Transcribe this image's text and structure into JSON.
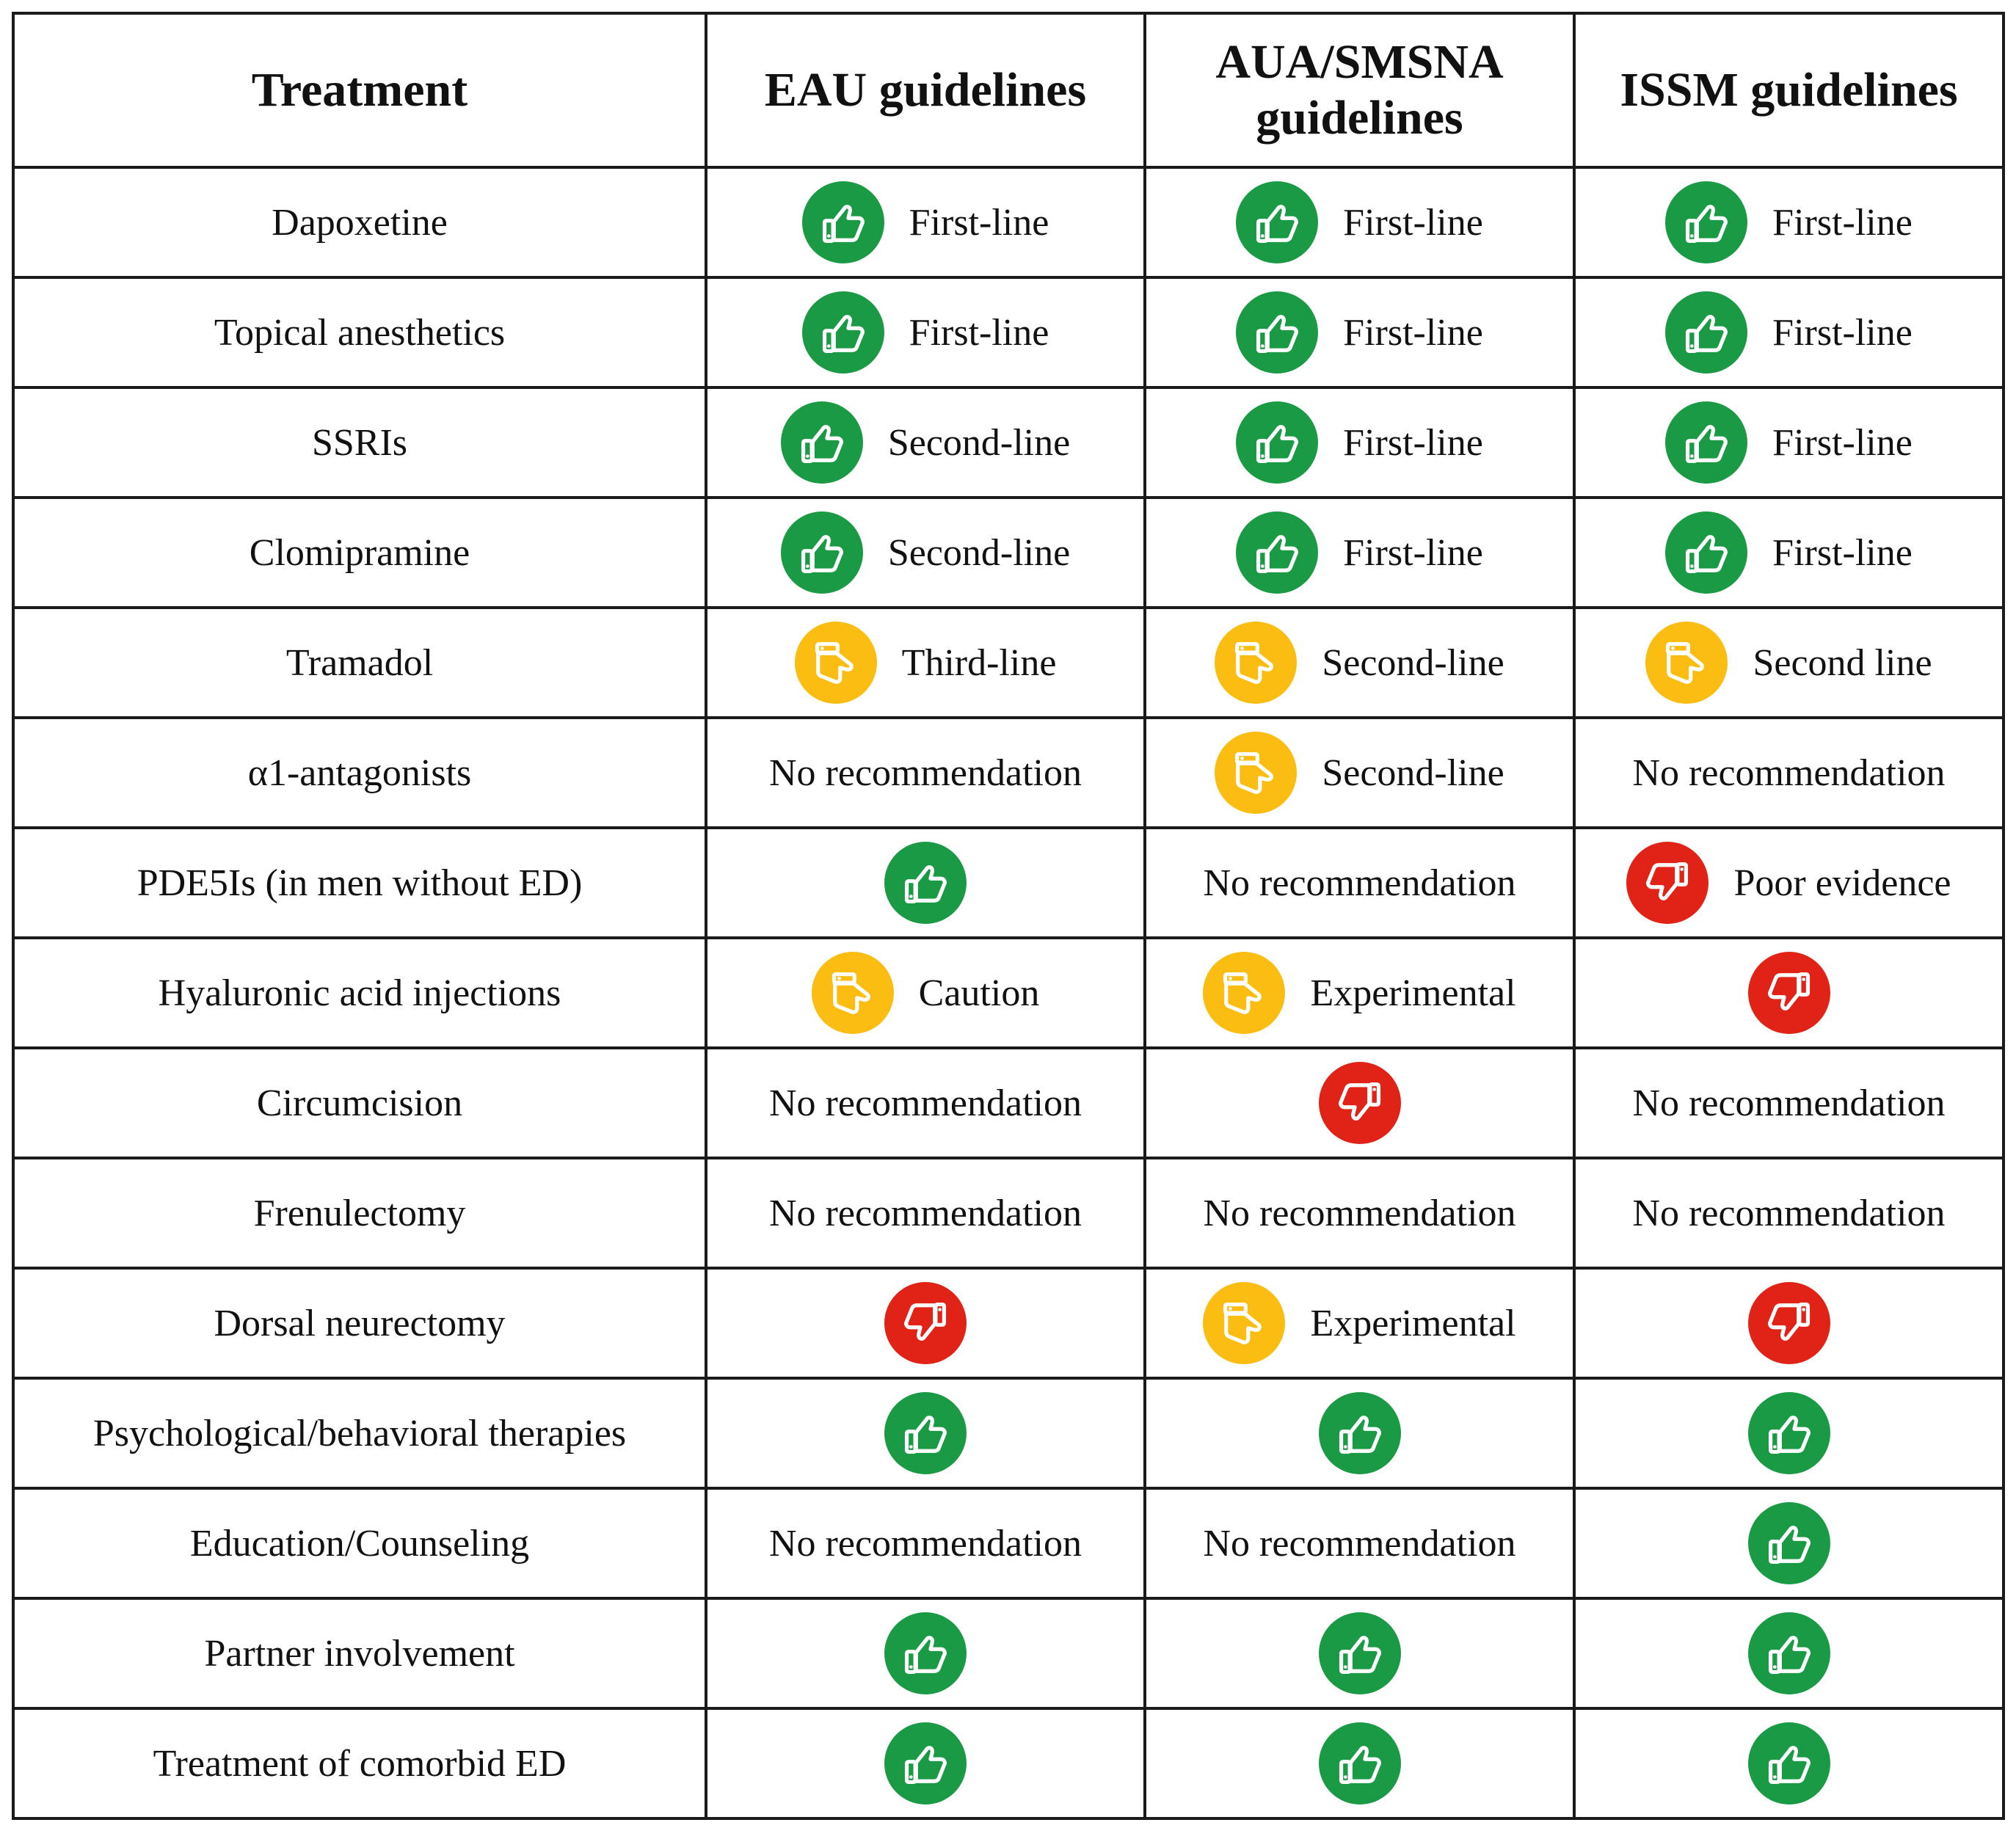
{
  "colors": {
    "positive": "#1b9a45",
    "caution": "#fbbd11",
    "negative": "#e02316"
  },
  "headers": {
    "treatment": "Treatment",
    "eau": "EAU guidelines",
    "aua": "AUA/SMSNA guidelines",
    "issm": "ISSM guidelines"
  },
  "rows": [
    {
      "treatment": "Dapoxetine",
      "eau": {
        "icon": "thumbs-up-icon",
        "label": "First-line"
      },
      "aua": {
        "icon": "thumbs-up-icon",
        "label": "First-line"
      },
      "issm": {
        "icon": "thumbs-up-icon",
        "label": "First-line"
      }
    },
    {
      "treatment": "Topical anesthetics",
      "eau": {
        "icon": "thumbs-up-icon",
        "label": "First-line"
      },
      "aua": {
        "icon": "thumbs-up-icon",
        "label": "First-line"
      },
      "issm": {
        "icon": "thumbs-up-icon",
        "label": "First-line"
      }
    },
    {
      "treatment": "SSRIs",
      "eau": {
        "icon": "thumbs-up-icon",
        "label": "Second-line"
      },
      "aua": {
        "icon": "thumbs-up-icon",
        "label": "First-line"
      },
      "issm": {
        "icon": "thumbs-up-icon",
        "label": "First-line"
      }
    },
    {
      "treatment": "Clomipramine",
      "eau": {
        "icon": "thumbs-up-icon",
        "label": "Second-line"
      },
      "aua": {
        "icon": "thumbs-up-icon",
        "label": "First-line"
      },
      "issm": {
        "icon": "thumbs-up-icon",
        "label": "First-line"
      }
    },
    {
      "treatment": "Tramadol",
      "eau": {
        "icon": "thumb-sideways-icon",
        "label": "Third-line"
      },
      "aua": {
        "icon": "thumb-sideways-icon",
        "label": "Second-line"
      },
      "issm": {
        "icon": "thumb-sideways-icon",
        "label": "Second line"
      }
    },
    {
      "treatment": "α1-antagonists",
      "eau": {
        "icon": "",
        "label": "No recommendation"
      },
      "aua": {
        "icon": "thumb-sideways-icon",
        "label": "Second-line"
      },
      "issm": {
        "icon": "",
        "label": "No recommendation"
      }
    },
    {
      "treatment": "PDE5Is (in men without ED)",
      "eau": {
        "icon": "thumbs-up-icon",
        "label": ""
      },
      "aua": {
        "icon": "",
        "label": "No recommendation"
      },
      "issm": {
        "icon": "thumbs-down-icon",
        "label": "Poor evidence"
      }
    },
    {
      "treatment": "Hyaluronic acid injections",
      "eau": {
        "icon": "thumb-sideways-icon",
        "label": "Caution"
      },
      "aua": {
        "icon": "thumb-sideways-icon",
        "label": "Experimental"
      },
      "issm": {
        "icon": "thumbs-down-icon",
        "label": ""
      }
    },
    {
      "treatment": "Circumcision",
      "eau": {
        "icon": "",
        "label": "No recommendation"
      },
      "aua": {
        "icon": "thumbs-down-icon",
        "label": ""
      },
      "issm": {
        "icon": "",
        "label": "No recommendation"
      }
    },
    {
      "treatment": "Frenulectomy",
      "eau": {
        "icon": "",
        "label": "No recommendation"
      },
      "aua": {
        "icon": "",
        "label": "No recommendation"
      },
      "issm": {
        "icon": "",
        "label": "No recommendation"
      }
    },
    {
      "treatment": "Dorsal neurectomy",
      "eau": {
        "icon": "thumbs-down-icon",
        "label": ""
      },
      "aua": {
        "icon": "thumb-sideways-icon",
        "label": "Experimental"
      },
      "issm": {
        "icon": "thumbs-down-icon",
        "label": ""
      }
    },
    {
      "treatment": "Psychological/behavioral therapies",
      "eau": {
        "icon": "thumbs-up-icon",
        "label": ""
      },
      "aua": {
        "icon": "thumbs-up-icon",
        "label": ""
      },
      "issm": {
        "icon": "thumbs-up-icon",
        "label": ""
      }
    },
    {
      "treatment": "Education/Counseling",
      "eau": {
        "icon": "",
        "label": "No recommendation"
      },
      "aua": {
        "icon": "",
        "label": "No recommendation"
      },
      "issm": {
        "icon": "thumbs-up-icon",
        "label": ""
      }
    },
    {
      "treatment": "Partner involvement",
      "eau": {
        "icon": "thumbs-up-icon",
        "label": ""
      },
      "aua": {
        "icon": "thumbs-up-icon",
        "label": ""
      },
      "issm": {
        "icon": "thumbs-up-icon",
        "label": ""
      }
    },
    {
      "treatment": "Treatment of comorbid ED",
      "eau": {
        "icon": "thumbs-up-icon",
        "label": ""
      },
      "aua": {
        "icon": "thumbs-up-icon",
        "label": ""
      },
      "issm": {
        "icon": "thumbs-up-icon",
        "label": ""
      }
    }
  ]
}
